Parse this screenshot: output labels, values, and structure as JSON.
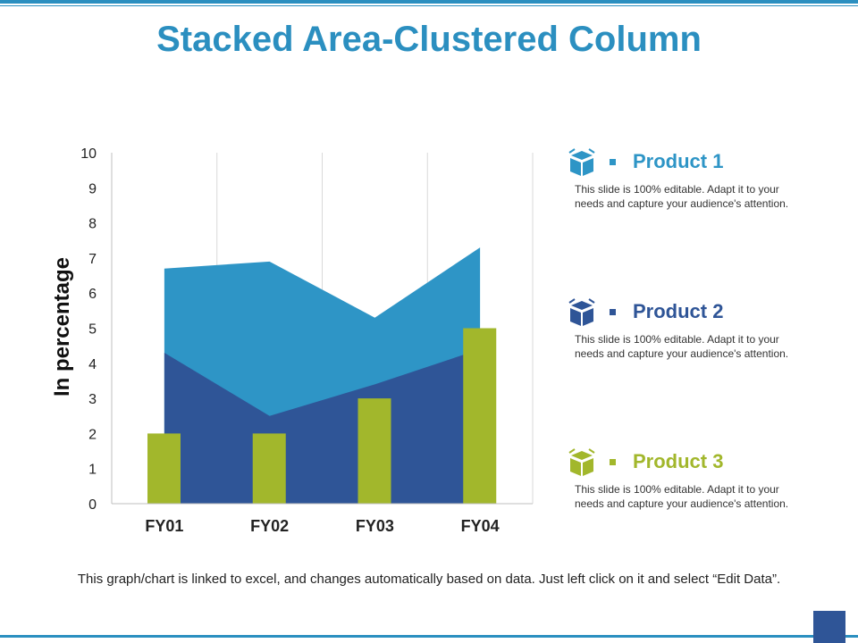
{
  "slide": {
    "title": "Stacked Area-Clustered Column",
    "footnote": "This graph/chart is linked to excel, and changes automatically based on data. Just left click on it and select “Edit Data”."
  },
  "colors": {
    "accent": "#2b8fc0",
    "product1": "#2e95c6",
    "product2": "#2f5597",
    "product3": "#a2b72c"
  },
  "legend": [
    {
      "icon": "box-icon",
      "title": "Product 1",
      "desc": "This slide is 100% editable. Adapt it to your needs and capture your audience's attention.",
      "color": "#2e95c6"
    },
    {
      "icon": "box-icon",
      "title": "Product 2",
      "desc": "This slide is 100% editable. Adapt it to your needs and capture your audience's attention.",
      "color": "#2f5597"
    },
    {
      "icon": "box-icon",
      "title": "Product 3",
      "desc": "This slide is 100% editable. Adapt it to your needs and capture your audience's attention.",
      "color": "#a2b72c"
    }
  ],
  "chart_data": {
    "type": "bar",
    "categories": [
      "FY01",
      "FY02",
      "FY03",
      "FY04"
    ],
    "ylabel": "In percentage",
    "ylim": [
      0,
      10
    ],
    "yticks": [
      0,
      1,
      2,
      3,
      4,
      5,
      6,
      7,
      8,
      9,
      10
    ],
    "grid": "vertical",
    "series": [
      {
        "name": "Product 1",
        "type": "stacked-area",
        "values": [
          2.4,
          4.4,
          1.9,
          2.9
        ]
      },
      {
        "name": "Product 2",
        "type": "stacked-area",
        "values": [
          4.3,
          2.5,
          3.4,
          4.4
        ]
      },
      {
        "name": "Product 3",
        "type": "clustered-column",
        "values": [
          2,
          2,
          3,
          5
        ]
      }
    ]
  }
}
